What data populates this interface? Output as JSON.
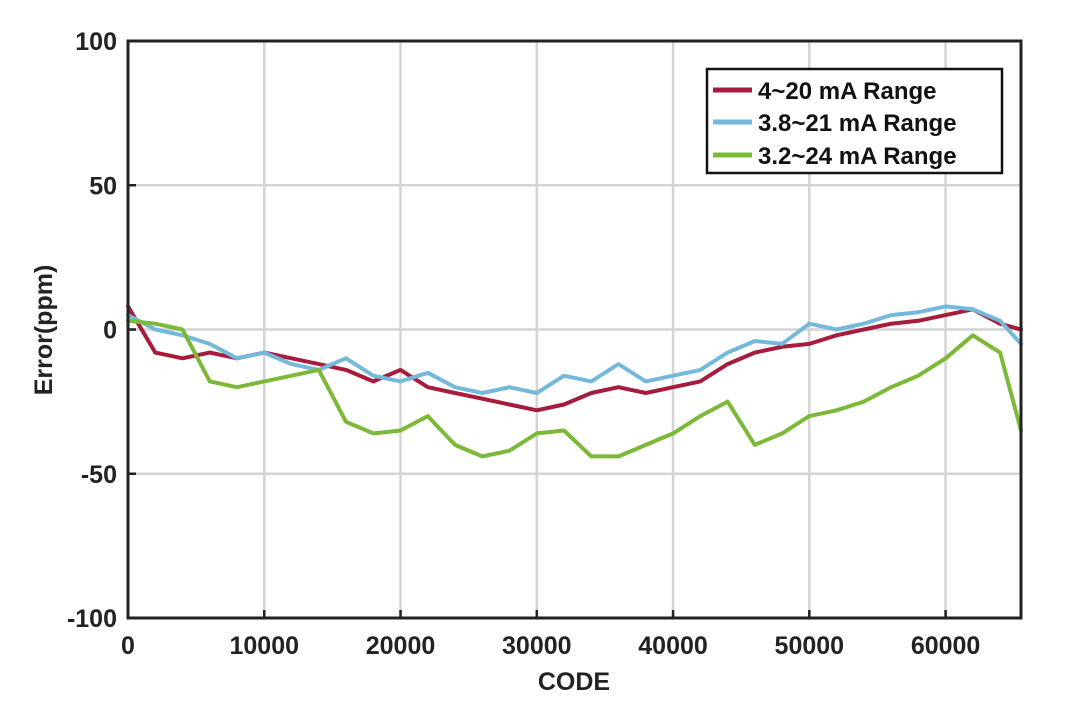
{
  "chart_data": {
    "type": "line",
    "xlabel": "CODE",
    "ylabel": "Error(ppm)",
    "xlim": [
      0,
      65535
    ],
    "ylim": [
      -100,
      100
    ],
    "grid": true,
    "legend_position": "top-right",
    "x_ticks": [
      0,
      10000,
      20000,
      30000,
      40000,
      50000,
      60000
    ],
    "y_ticks": [
      -100,
      -50,
      0,
      50,
      100
    ],
    "x_tick_labels": [
      "0",
      "10000",
      "20000",
      "30000",
      "40000",
      "50000",
      "60000"
    ],
    "y_tick_labels": [
      "-100",
      "-50",
      "0",
      "50",
      "100"
    ],
    "x": [
      0,
      2000,
      4000,
      6000,
      8000,
      10000,
      12000,
      14000,
      16000,
      18000,
      20000,
      22000,
      24000,
      26000,
      28000,
      30000,
      32000,
      34000,
      36000,
      38000,
      40000,
      42000,
      44000,
      46000,
      48000,
      50000,
      52000,
      54000,
      56000,
      58000,
      60000,
      62000,
      64000,
      65535
    ],
    "series": [
      {
        "name": "4~20 mA Range",
        "color": "#a51c3c",
        "values": [
          8,
          -8,
          -10,
          -8,
          -10,
          -8,
          -10,
          -12,
          -14,
          -18,
          -14,
          -20,
          -22,
          -24,
          -26,
          -28,
          -26,
          -22,
          -20,
          -22,
          -20,
          -18,
          -12,
          -8,
          -6,
          -5,
          -2,
          0,
          2,
          3,
          5,
          7,
          2,
          0
        ]
      },
      {
        "name": "3.8~21 mA Range",
        "color": "#74b9dc",
        "values": [
          5,
          0,
          -2,
          -5,
          -10,
          -8,
          -12,
          -14,
          -10,
          -16,
          -18,
          -15,
          -20,
          -22,
          -20,
          -22,
          -16,
          -18,
          -12,
          -18,
          -16,
          -14,
          -8,
          -4,
          -5,
          2,
          0,
          2,
          5,
          6,
          8,
          7,
          3,
          -5
        ]
      },
      {
        "name": "3.2~24 mA Range",
        "color": "#7cb938",
        "values": [
          3,
          2,
          0,
          -18,
          -20,
          -18,
          -16,
          -14,
          -32,
          -36,
          -35,
          -30,
          -40,
          -44,
          -42,
          -36,
          -35,
          -44,
          -44,
          -40,
          -36,
          -30,
          -25,
          -40,
          -36,
          -30,
          -28,
          -25,
          -20,
          -16,
          -10,
          -2,
          -8,
          -35
        ]
      }
    ]
  }
}
